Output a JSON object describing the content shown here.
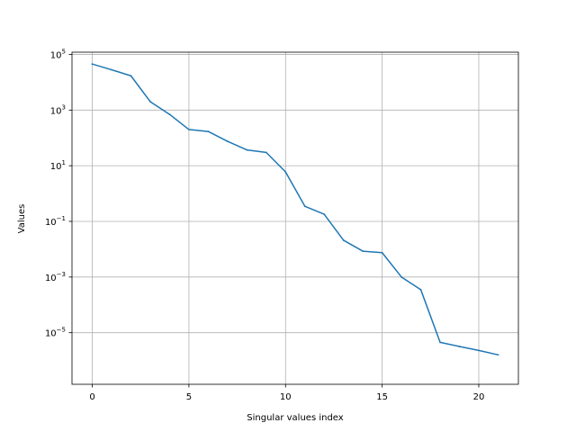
{
  "chart_data": {
    "type": "line",
    "title": "",
    "xlabel": "Singular values index",
    "ylabel": "Values",
    "yscale": "log",
    "xlim": [
      -1.05,
      22.05
    ],
    "ylim": [
      1.4e-07,
      120000.0
    ],
    "grid": true,
    "line_color": "#1f77b4",
    "x_ticks": [
      {
        "value": 0,
        "label": "0"
      },
      {
        "value": 5,
        "label": "5"
      },
      {
        "value": 10,
        "label": "10"
      },
      {
        "value": 15,
        "label": "15"
      },
      {
        "value": 20,
        "label": "20"
      }
    ],
    "y_ticks": [
      {
        "exp": 5,
        "label": "10",
        "sup": "5"
      },
      {
        "exp": 3,
        "label": "10",
        "sup": "3"
      },
      {
        "exp": 1,
        "label": "10",
        "sup": "1"
      },
      {
        "exp": -1,
        "label": "10",
        "sup": "−1"
      },
      {
        "exp": -3,
        "label": "10",
        "sup": "−3"
      },
      {
        "exp": -5,
        "label": "10",
        "sup": "−5"
      }
    ],
    "series": [
      {
        "x": [
          0,
          1,
          2,
          3,
          4,
          5,
          6,
          7,
          8,
          9,
          10,
          11,
          12,
          13,
          14,
          15,
          16,
          17,
          18,
          19,
          20,
          21
        ],
        "values": [
          45000,
          28000,
          17000,
          2000,
          700,
          200,
          170,
          75,
          37,
          30,
          6,
          0.35,
          0.18,
          0.021,
          0.0085,
          0.0075,
          0.001,
          0.00035,
          4.5e-06,
          3.2e-06,
          2.3e-06,
          1.6e-06
        ]
      }
    ]
  }
}
